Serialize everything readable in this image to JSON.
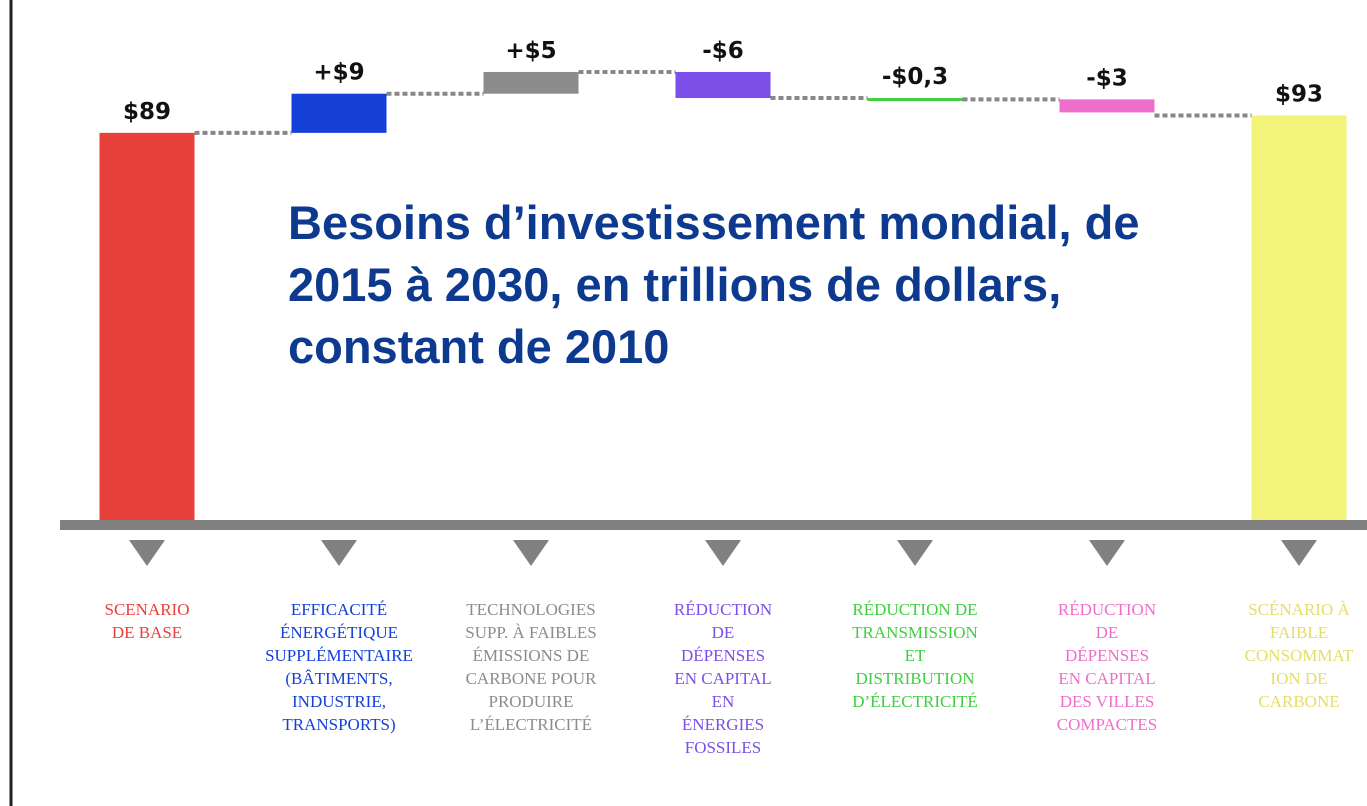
{
  "chart_data": {
    "type": "waterfall",
    "title": "Besoins d’investissement mondial, de 2015 à 2030, en trillions de dollars, constant de 2010",
    "categories": [
      "SCENARIO\nDE BASE",
      "EFFICACITÉ\nÉNERGÉTIQUE\nSUPPLÉMENTAIRE\n(BÂTIMENTS,\nINDUSTRIE,\nTRANSPORTS)",
      "TECHNOLOGIES\nSUPP. À FAIBLES\nÉMISSIONS DE\nCARBONE POUR\nPRODUIRE\nL’ÉLECTRICITÉ",
      "RÉDUCTION\nDE\nDÉPENSES\nEN CAPITAL\nEN\nÉNERGIES\nFOSSILES",
      "RÉDUCTION DE\nTRANSMISSION\nET\nDISTRIBUTION\nD’ÉLECTRICITÉ",
      "RÉDUCTION\nDE\nDÉPENSES\nEN CAPITAL\nDES VILLES\nCOMPACTES",
      "SCÉNARIO À\nFAIBLE\nCONSOMMAT\nION DE\nCARBONE"
    ],
    "values": [
      89,
      9,
      5,
      -6,
      -0.3,
      -3,
      93
    ],
    "value_labels": [
      "$89",
      "+$9",
      "+$5",
      "-$6",
      "-$0,3",
      "-$3",
      "$93"
    ],
    "measure": [
      "absolute",
      "relative",
      "relative",
      "relative",
      "relative",
      "relative",
      "absolute"
    ],
    "colors": [
      "#e8403a",
      "#1440d8",
      "#8c8c8c",
      "#7b4fe8",
      "#3fcf3f",
      "#ee6fcb",
      "#f2f57a"
    ]
  }
}
